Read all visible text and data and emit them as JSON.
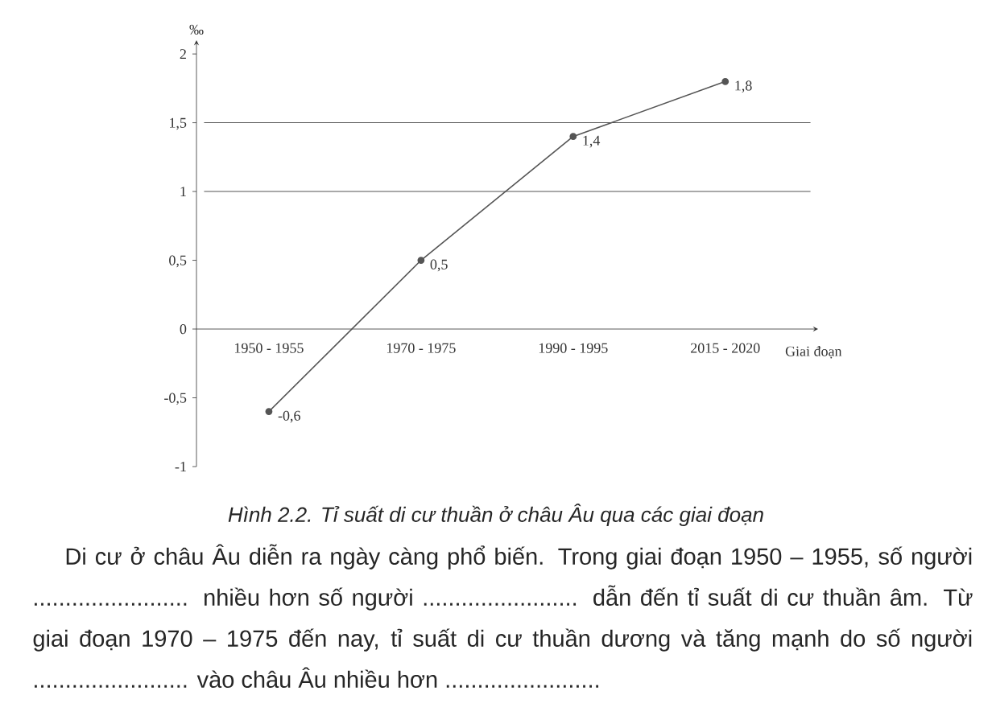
{
  "chart_data": {
    "type": "line",
    "title": "Hình 2.2. Tỉ suất di cư thuần ở châu Âu qua các giai đoạn",
    "xlabel": "Giai đoạn",
    "ylabel": "‰",
    "categories": [
      "1950 - 1955",
      "1970 - 1975",
      "1990 - 1995",
      "2015 - 2020"
    ],
    "values": [
      -0.6,
      0.5,
      1.4,
      1.8
    ],
    "value_labels": [
      "-0,6",
      "0,5",
      "1,4",
      "1,8"
    ],
    "color": "#555555",
    "marker": "circle",
    "ylim": [
      -1,
      2.1
    ],
    "yticks": [
      {
        "value": -1,
        "label": "-1"
      },
      {
        "value": -0.5,
        "label": "-0,5"
      },
      {
        "value": 0,
        "label": "0"
      },
      {
        "value": 0.5,
        "label": "0,5"
      },
      {
        "value": 1,
        "label": "1"
      },
      {
        "value": 1.5,
        "label": "1,5"
      },
      {
        "value": 2,
        "label": "2"
      }
    ],
    "ref_lines": [
      {
        "axis": "y",
        "value": 1,
        "color": "#555555"
      },
      {
        "axis": "y",
        "value": 1.5,
        "color": "#555555"
      }
    ],
    "annotations": [
      "Di cư ở châu Âu diễn ra ngày càng phổ biến. Trong giai đoạn 1950 – 1955, số người ........................ nhiều hơn số người ........................ dẫn đến tỉ suất di cư thuần âm. Từ giai đoạn 1970 – 1975 đến nay, tỉ suất di cư thuần dương và tăng mạnh do số người ........................ vào châu Âu nhiều hơn ........................"
    ]
  }
}
